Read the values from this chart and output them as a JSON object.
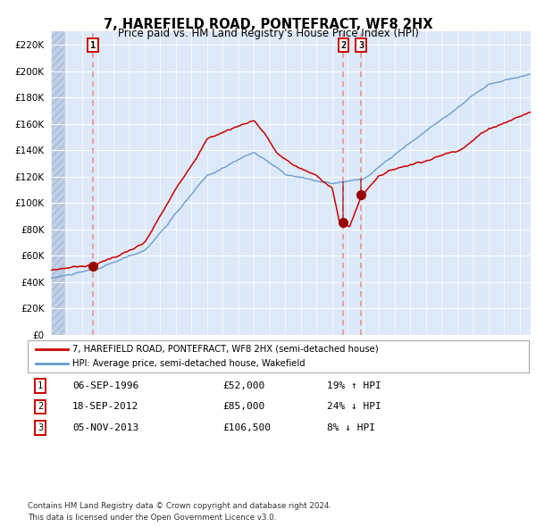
{
  "title": "7, HAREFIELD ROAD, PONTEFRACT, WF8 2HX",
  "subtitle": "Price paid vs. HM Land Registry's House Price Index (HPI)",
  "ylim": [
    0,
    230000
  ],
  "yticks": [
    0,
    20000,
    40000,
    60000,
    80000,
    100000,
    120000,
    140000,
    160000,
    180000,
    200000,
    220000
  ],
  "ytick_labels": [
    "£0",
    "£20K",
    "£40K",
    "£60K",
    "£80K",
    "£100K",
    "£120K",
    "£140K",
    "£160K",
    "£180K",
    "£200K",
    "£220K"
  ],
  "bg_color": "#dce9f8",
  "hatch_color": "#c0d0e8",
  "grid_color": "#ffffff",
  "red_line_color": "#cc0000",
  "blue_line_color": "#6699cc",
  "vline_color": "#ee8888",
  "marker_color": "#990000",
  "sale1_date_num": 1996.69,
  "sale1_price": 52000,
  "sale2_date_num": 2012.72,
  "sale2_price": 85000,
  "sale3_date_num": 2013.84,
  "sale3_price": 106500,
  "hpi_at_sale2": 111000,
  "hpi_at_sale3": 114500,
  "legend_label_red": "7, HAREFIELD ROAD, PONTEFRACT, WF8 2HX (semi-detached house)",
  "legend_label_blue": "HPI: Average price, semi-detached house, Wakefield",
  "table_rows": [
    {
      "num": "1",
      "date": "06-SEP-1996",
      "price": "£52,000",
      "hpi": "19% ↑ HPI"
    },
    {
      "num": "2",
      "date": "18-SEP-2012",
      "price": "£85,000",
      "hpi": "24% ↓ HPI"
    },
    {
      "num": "3",
      "date": "05-NOV-2013",
      "price": "£106,500",
      "hpi": "8% ↓ HPI"
    }
  ],
  "footnote1": "Contains HM Land Registry data © Crown copyright and database right 2024.",
  "footnote2": "This data is licensed under the Open Government Licence v3.0.",
  "box_color": "#cc0000",
  "xlim_start": 1994.0,
  "xlim_end": 2024.7
}
